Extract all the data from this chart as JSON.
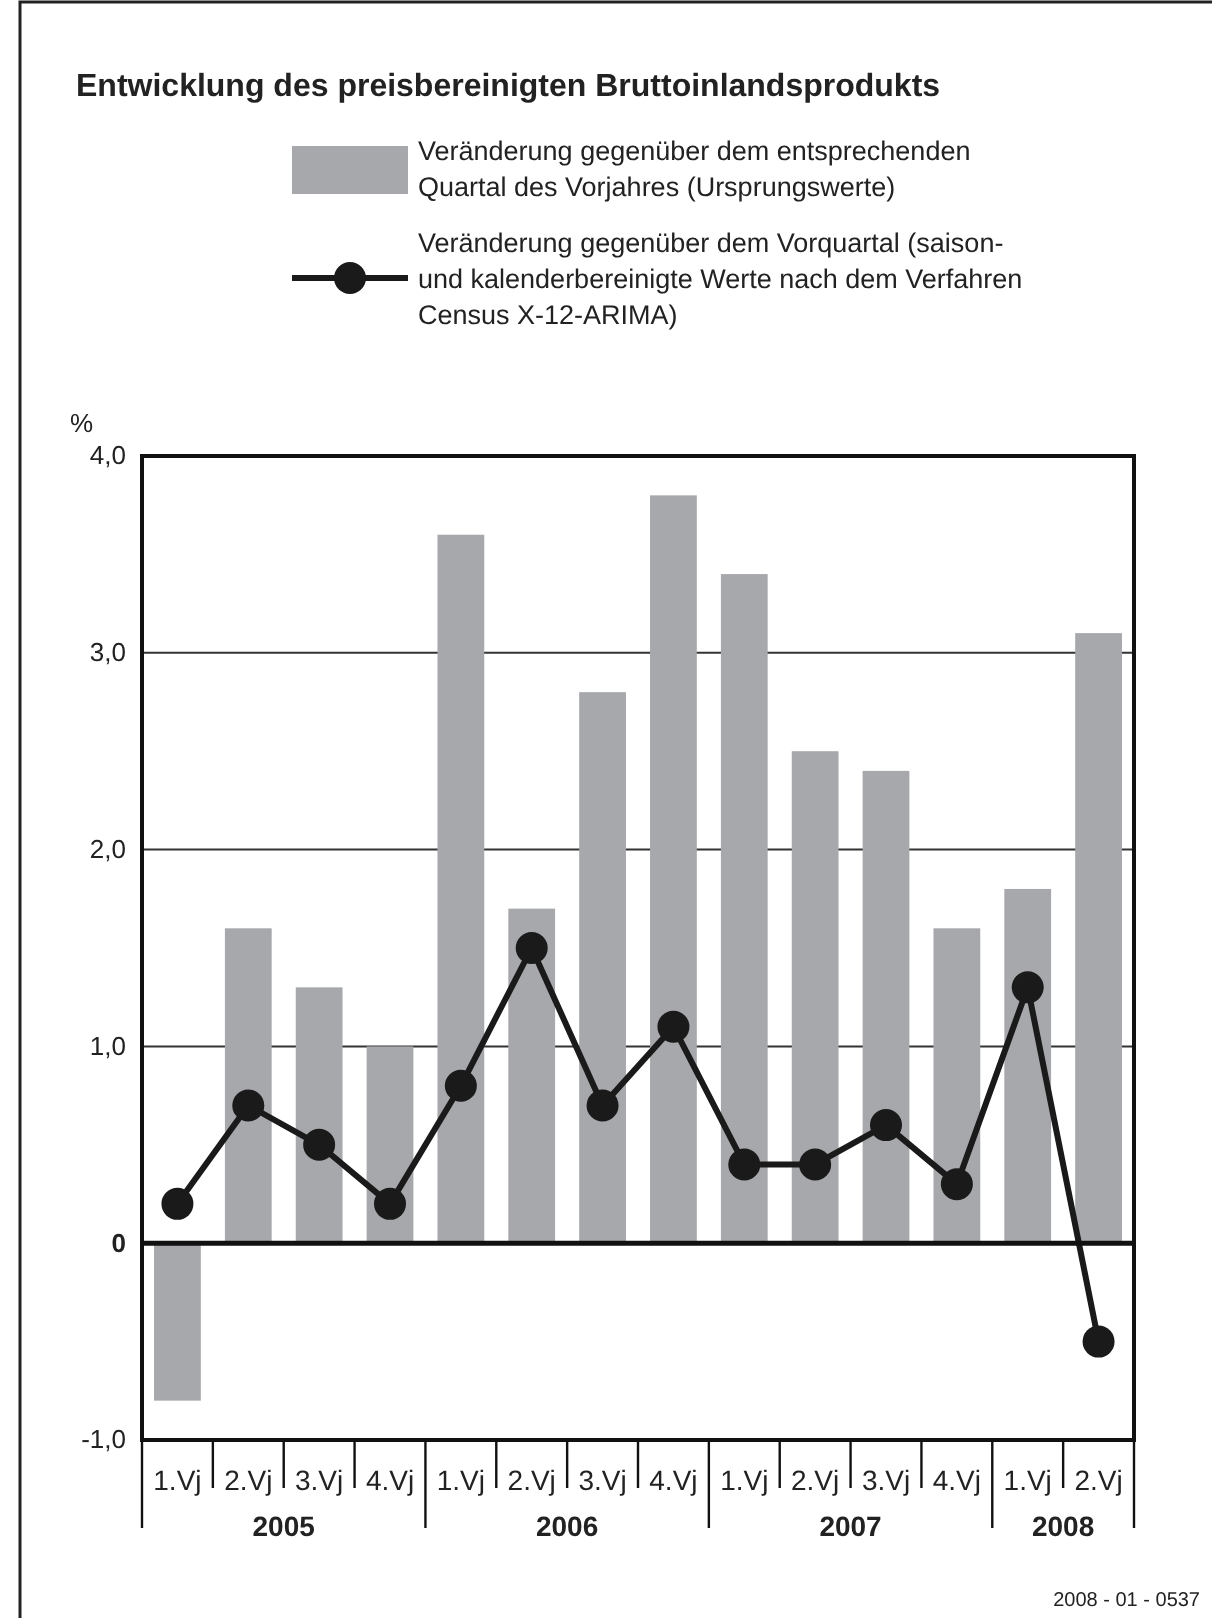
{
  "chart_data": {
    "type": "bar",
    "title": "Entwicklung des preisbereinigten Bruttoinlandsprodukts",
    "ylabel": "%",
    "categories": [
      "1.Vj",
      "2.Vj",
      "3.Vj",
      "4.Vj",
      "1.Vj",
      "2.Vj",
      "3.Vj",
      "4.Vj",
      "1.Vj",
      "2.Vj",
      "3.Vj",
      "4.Vj",
      "1.Vj",
      "2.Vj"
    ],
    "series": [
      {
        "name": "Veränderung gegenüber dem entsprechenden Quartal des Vorjahres (Ursprungswerte)",
        "type": "bar",
        "color": "#a7a8ac",
        "values": [
          -0.8,
          1.6,
          1.3,
          1.0,
          3.6,
          1.7,
          2.8,
          3.8,
          3.4,
          2.5,
          2.4,
          1.6,
          1.8,
          3.1
        ]
      },
      {
        "name": "Veränderung gegenüber dem Vorquartal (saison- und kalenderbereinigte Werte nach dem Verfahren Census X-12-ARIMA)",
        "type": "line",
        "color": "#1a1a1a",
        "marker": "circle",
        "line_style": "solid",
        "values": [
          0.2,
          0.7,
          0.5,
          0.2,
          0.8,
          1.5,
          0.7,
          1.1,
          0.4,
          0.4,
          0.6,
          0.3,
          1.3,
          -0.5
        ]
      }
    ],
    "ylim": [
      -1,
      4
    ],
    "yticks": [
      {
        "value": -1,
        "label": "-1,0"
      },
      0,
      {
        "value": 1,
        "label": "1,0"
      },
      {
        "value": 2,
        "label": "2,0"
      },
      {
        "value": 3,
        "label": "3,0"
      },
      {
        "value": 4,
        "label": "4,0"
      }
    ],
    "grid": "y",
    "legend": "top",
    "annotations": [
      "2005",
      "2006",
      "2007",
      "2008",
      "2008 - 01 - 0537"
    ]
  }
}
